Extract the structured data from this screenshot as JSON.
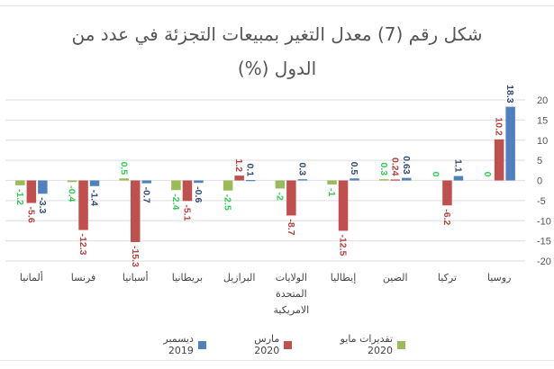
{
  "chart_data": {
    "type": "bar",
    "title_line1": "شكل رقم (7) معدل التغير بمبيعات التجزئة في عدد من",
    "title_line2": "الدول (%)",
    "categories": [
      [
        "ألمانيا"
      ],
      [
        "فرنسا"
      ],
      [
        "أسبانيا"
      ],
      [
        "بريطانيا"
      ],
      [
        "البرازيل"
      ],
      [
        "الولايات",
        "المتحدة",
        "الامريكية"
      ],
      [
        "إيطاليا"
      ],
      [
        "الصين"
      ],
      [
        "تركيا"
      ],
      [
        "روسيا"
      ]
    ],
    "series": [
      {
        "name": "تقديرات مايو 2020",
        "color": "#9bbb59",
        "label_color": "#2ecc52",
        "values": [
          -1.2,
          -0.4,
          0.5,
          -2.4,
          -2.5,
          -2,
          -1,
          0.3,
          0,
          0
        ]
      },
      {
        "name": "مارس 2020",
        "color": "#c0504d",
        "label_color": "#b5403d",
        "values": [
          -5.6,
          -12.3,
          -15.3,
          -5.1,
          1.2,
          -8.7,
          -12.5,
          0.24,
          -6.2,
          10.2
        ]
      },
      {
        "name": "ديسمبر 2019",
        "color": "#4f81bd",
        "label_color": "#2f4a73",
        "values": [
          -3.3,
          -1.4,
          -0.7,
          -0.6,
          0.1,
          0.3,
          0.5,
          0.63,
          1.1,
          18.3
        ]
      }
    ],
    "ylim": [
      -20,
      20
    ],
    "yticks": [
      20,
      15,
      10,
      5,
      0,
      -5,
      -10,
      -15,
      -20
    ],
    "grid": true,
    "legend_position": "bottom"
  }
}
